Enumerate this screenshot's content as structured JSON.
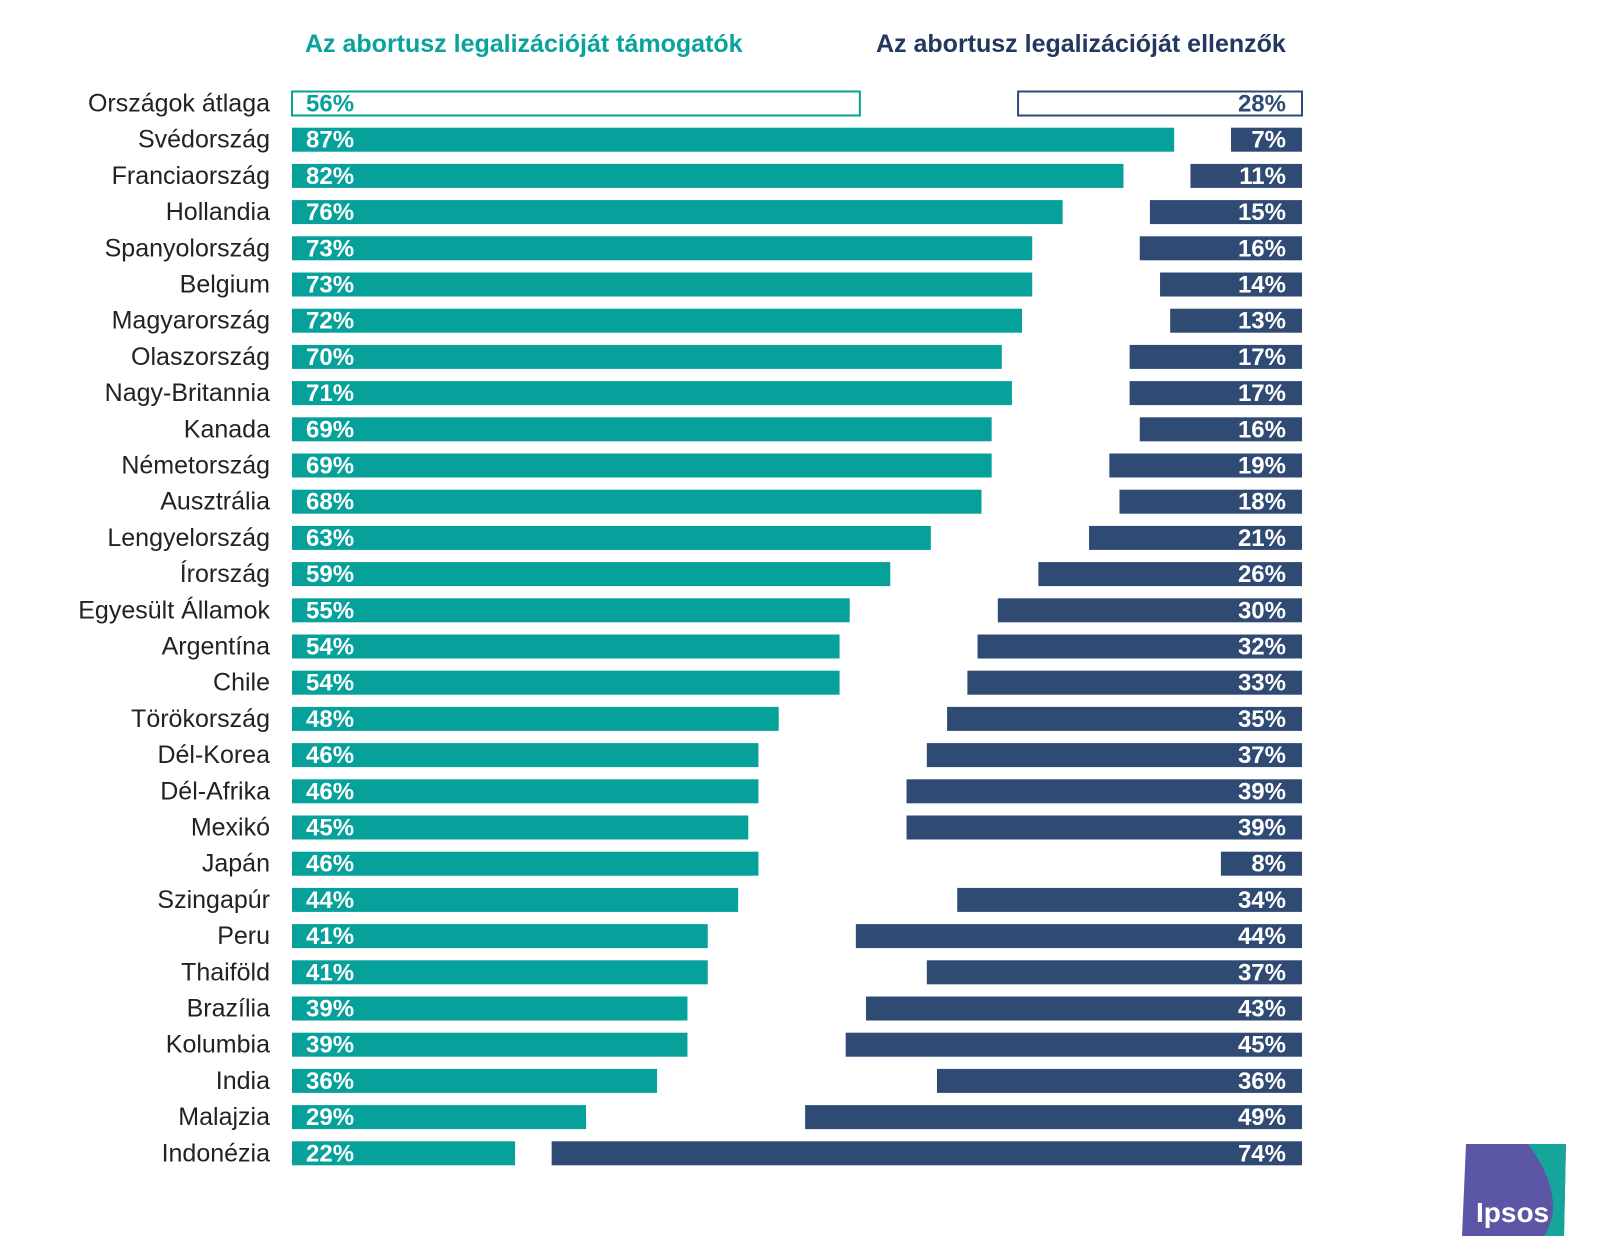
{
  "colors": {
    "support": "#06a19a",
    "oppose": "#2f4b74",
    "label_text": "#222222",
    "value_text": "#ffffff",
    "support_header": "#0aa39b",
    "oppose_header": "#22385e",
    "logo_bg": "#5b57a6",
    "logo_accent": "#17a59b"
  },
  "headers": {
    "support": "Az abortusz legalizációját támogatók",
    "oppose": "Az abortusz legalizációját ellenzők"
  },
  "logo": {
    "text": "Ipsos"
  },
  "chart_data": {
    "type": "bar",
    "orientation": "horizontal-diverging",
    "categories": [
      "Országok átlaga",
      "Svédország",
      "Franciaország",
      "Hollandia",
      "Spanyolország",
      "Belgium",
      "Magyarország",
      "Olaszország",
      "Nagy-Britannia",
      "Kanada",
      "Németország",
      "Ausztrália",
      "Lengyelország",
      "Írország",
      "Egyesült Államok",
      "Argentína",
      "Chile",
      "Törökország",
      "Dél-Korea",
      "Dél-Afrika",
      "Mexikó",
      "Japán",
      "Szingapúr",
      "Peru",
      "Thaiföld",
      "Brazília",
      "Kolumbia",
      "India",
      "Malajzia",
      "Indonézia"
    ],
    "series": [
      {
        "name": "Az abortusz legalizációját támogatók",
        "values": [
          56,
          87,
          82,
          76,
          73,
          73,
          72,
          70,
          71,
          69,
          69,
          68,
          63,
          59,
          55,
          54,
          54,
          48,
          46,
          46,
          45,
          46,
          44,
          41,
          41,
          39,
          39,
          36,
          29,
          22
        ],
        "labels": [
          "56%",
          "87%",
          "82%",
          "76%",
          "73%",
          "73%",
          "72%",
          "70%",
          "71%",
          "69%",
          "69%",
          "68%",
          "63%",
          "59%",
          "55%",
          "54%",
          "54%",
          "48%",
          "46%",
          "46%",
          "45%",
          "46%",
          "44%",
          "41%",
          "41%",
          "39%",
          "39%",
          "36%",
          "29%",
          "22%"
        ]
      },
      {
        "name": "Az abortusz legalizációját ellenzők",
        "values": [
          28,
          7,
          11,
          15,
          16,
          14,
          13,
          17,
          17,
          16,
          19,
          18,
          21,
          26,
          30,
          32,
          33,
          35,
          37,
          39,
          39,
          8,
          34,
          44,
          37,
          43,
          45,
          36,
          49,
          74
        ],
        "labels": [
          "28%",
          "7%",
          "11%",
          "15%",
          "16%",
          "14%",
          "13%",
          "17%",
          "17%",
          "16%",
          "19%",
          "18%",
          "21%",
          "26%",
          "30%",
          "32%",
          "33%",
          "35%",
          "37%",
          "39%",
          "39%",
          "8%",
          "34%",
          "44%",
          "37%",
          "43%",
          "45%",
          "36%",
          "49%",
          "74%"
        ]
      }
    ],
    "highlighted_category": "Országok átlaga",
    "xlabel": "",
    "ylabel": "",
    "grid": false
  }
}
